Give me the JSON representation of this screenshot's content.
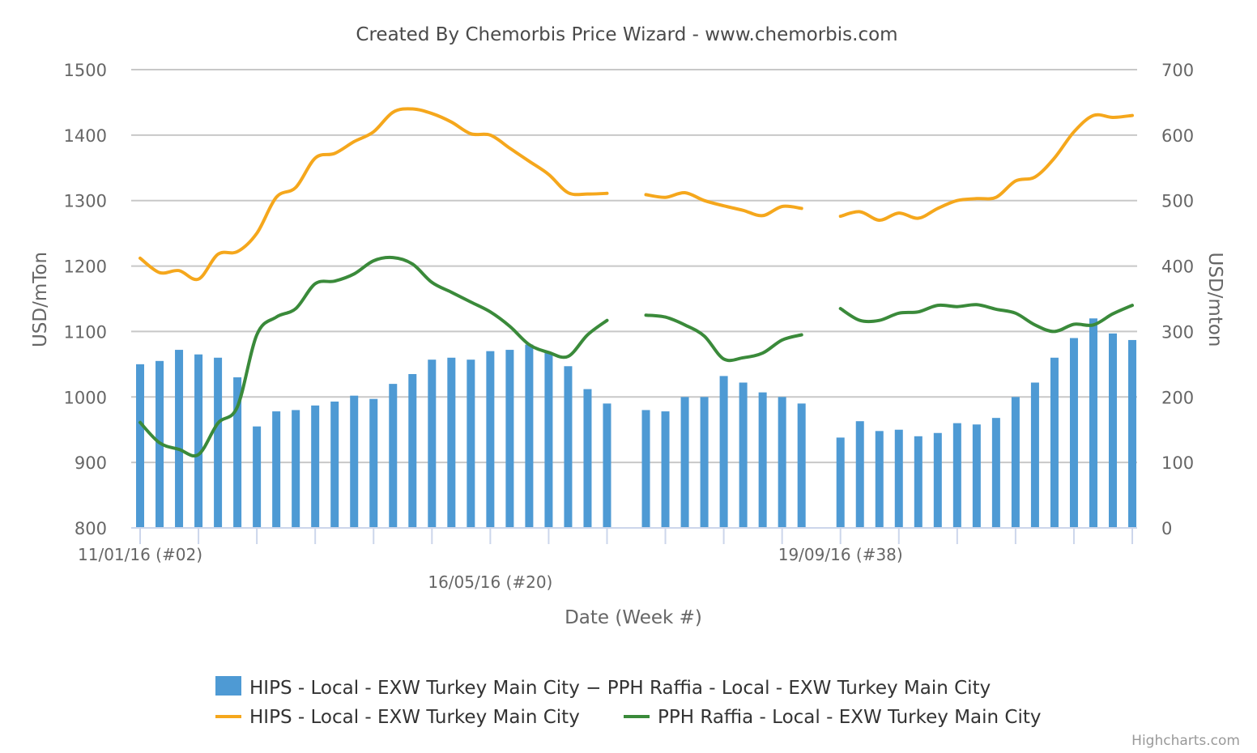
{
  "chart_data": {
    "type": "bar",
    "title": "Created By Chemorbis Price Wizard - www.chemorbis.com",
    "xlabel": "Date (Week #)",
    "ylabel_left": "USD/mTon",
    "ylabel_right": "USD/mton",
    "ylim_left": [
      800,
      1500
    ],
    "ylim_right": [
      0,
      700
    ],
    "yticks_left": [
      "800",
      "900",
      "1000",
      "1100",
      "1200",
      "1300",
      "1400",
      "1500"
    ],
    "yticks_right": [
      "0",
      "100",
      "200",
      "300",
      "400",
      "500",
      "600",
      "700"
    ],
    "grid": true,
    "legend_position": "bottom",
    "x_tick_labels": [
      {
        "label": "11/01/16 (#02)",
        "week": 0
      },
      {
        "label": "16/05/16 (#20)",
        "week": 18
      },
      {
        "label": "19/09/16 (#38)",
        "week": 36
      }
    ],
    "weeks": 52,
    "series": [
      {
        "name": "HIPS - Local - EXW Turkey Main City − PPH Raffia - Local - EXW Turkey Main City",
        "type": "column",
        "axis": "right",
        "color": "#4e9ad4",
        "values": [
          250,
          255,
          272,
          265,
          260,
          230,
          155,
          178,
          180,
          187,
          193,
          202,
          197,
          220,
          235,
          257,
          260,
          257,
          270,
          272,
          280,
          268,
          247,
          212,
          190,
          null,
          180,
          178,
          200,
          200,
          232,
          222,
          207,
          200,
          190,
          null,
          138,
          163,
          148,
          150,
          140,
          145,
          160,
          158,
          168,
          200,
          222,
          260,
          290,
          320,
          297,
          287
        ]
      },
      {
        "name": "HIPS - Local - EXW Turkey Main City",
        "type": "line",
        "axis": "left",
        "color": "#f5a71c",
        "values": [
          1212,
          1190,
          1193,
          1180,
          1218,
          1222,
          1250,
          1305,
          1320,
          1365,
          1372,
          1390,
          1405,
          1435,
          1440,
          1433,
          1420,
          1402,
          1400,
          1380,
          1360,
          1340,
          1312,
          1310,
          1311,
          null,
          1309,
          1305,
          1312,
          1300,
          1292,
          1285,
          1277,
          1291,
          1288,
          null,
          1276,
          1283,
          1270,
          1281,
          1273,
          1288,
          1300,
          1303,
          1305,
          1330,
          1336,
          1365,
          1405,
          1430,
          1427,
          1430
        ]
      },
      {
        "name": "PPH Raffia - Local - EXW Turkey Main City",
        "type": "line",
        "axis": "left",
        "color": "#3a8a3a",
        "values": [
          961,
          930,
          920,
          912,
          960,
          985,
          1095,
          1122,
          1135,
          1173,
          1177,
          1188,
          1208,
          1213,
          1203,
          1175,
          1160,
          1145,
          1130,
          1108,
          1080,
          1068,
          1062,
          1095,
          1117,
          null,
          1125,
          1122,
          1110,
          1093,
          1058,
          1060,
          1067,
          1087,
          1095,
          null,
          1135,
          1117,
          1117,
          1128,
          1130,
          1140,
          1138,
          1141,
          1134,
          1128,
          1110,
          1100,
          1111,
          1110,
          1127,
          1140
        ]
      }
    ]
  },
  "credits": "Highcharts.com"
}
